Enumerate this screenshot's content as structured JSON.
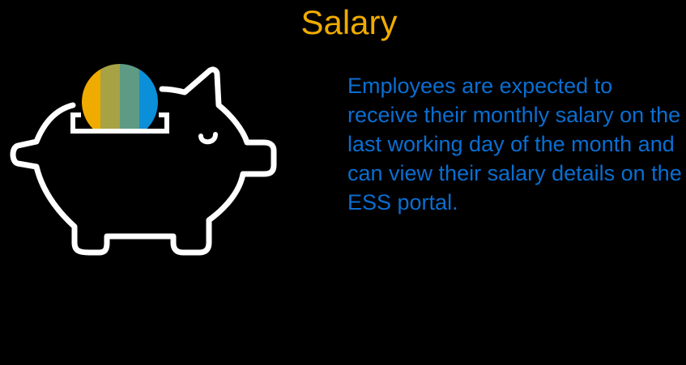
{
  "slide": {
    "title": "Salary",
    "body": "Employees are expected to receive their monthly salary on the last working day of the month and can view their salary details on the ESS portal.",
    "icon": "piggy-bank-icon"
  },
  "colors": {
    "background": "#000000",
    "title": "#F0AB00",
    "body_text": "#0A6ED1",
    "icon_outline": "#FFFFFF",
    "coin_stripes": [
      "#F0AB00",
      "#A7A244",
      "#5F9A84",
      "#0A8FD8"
    ]
  }
}
